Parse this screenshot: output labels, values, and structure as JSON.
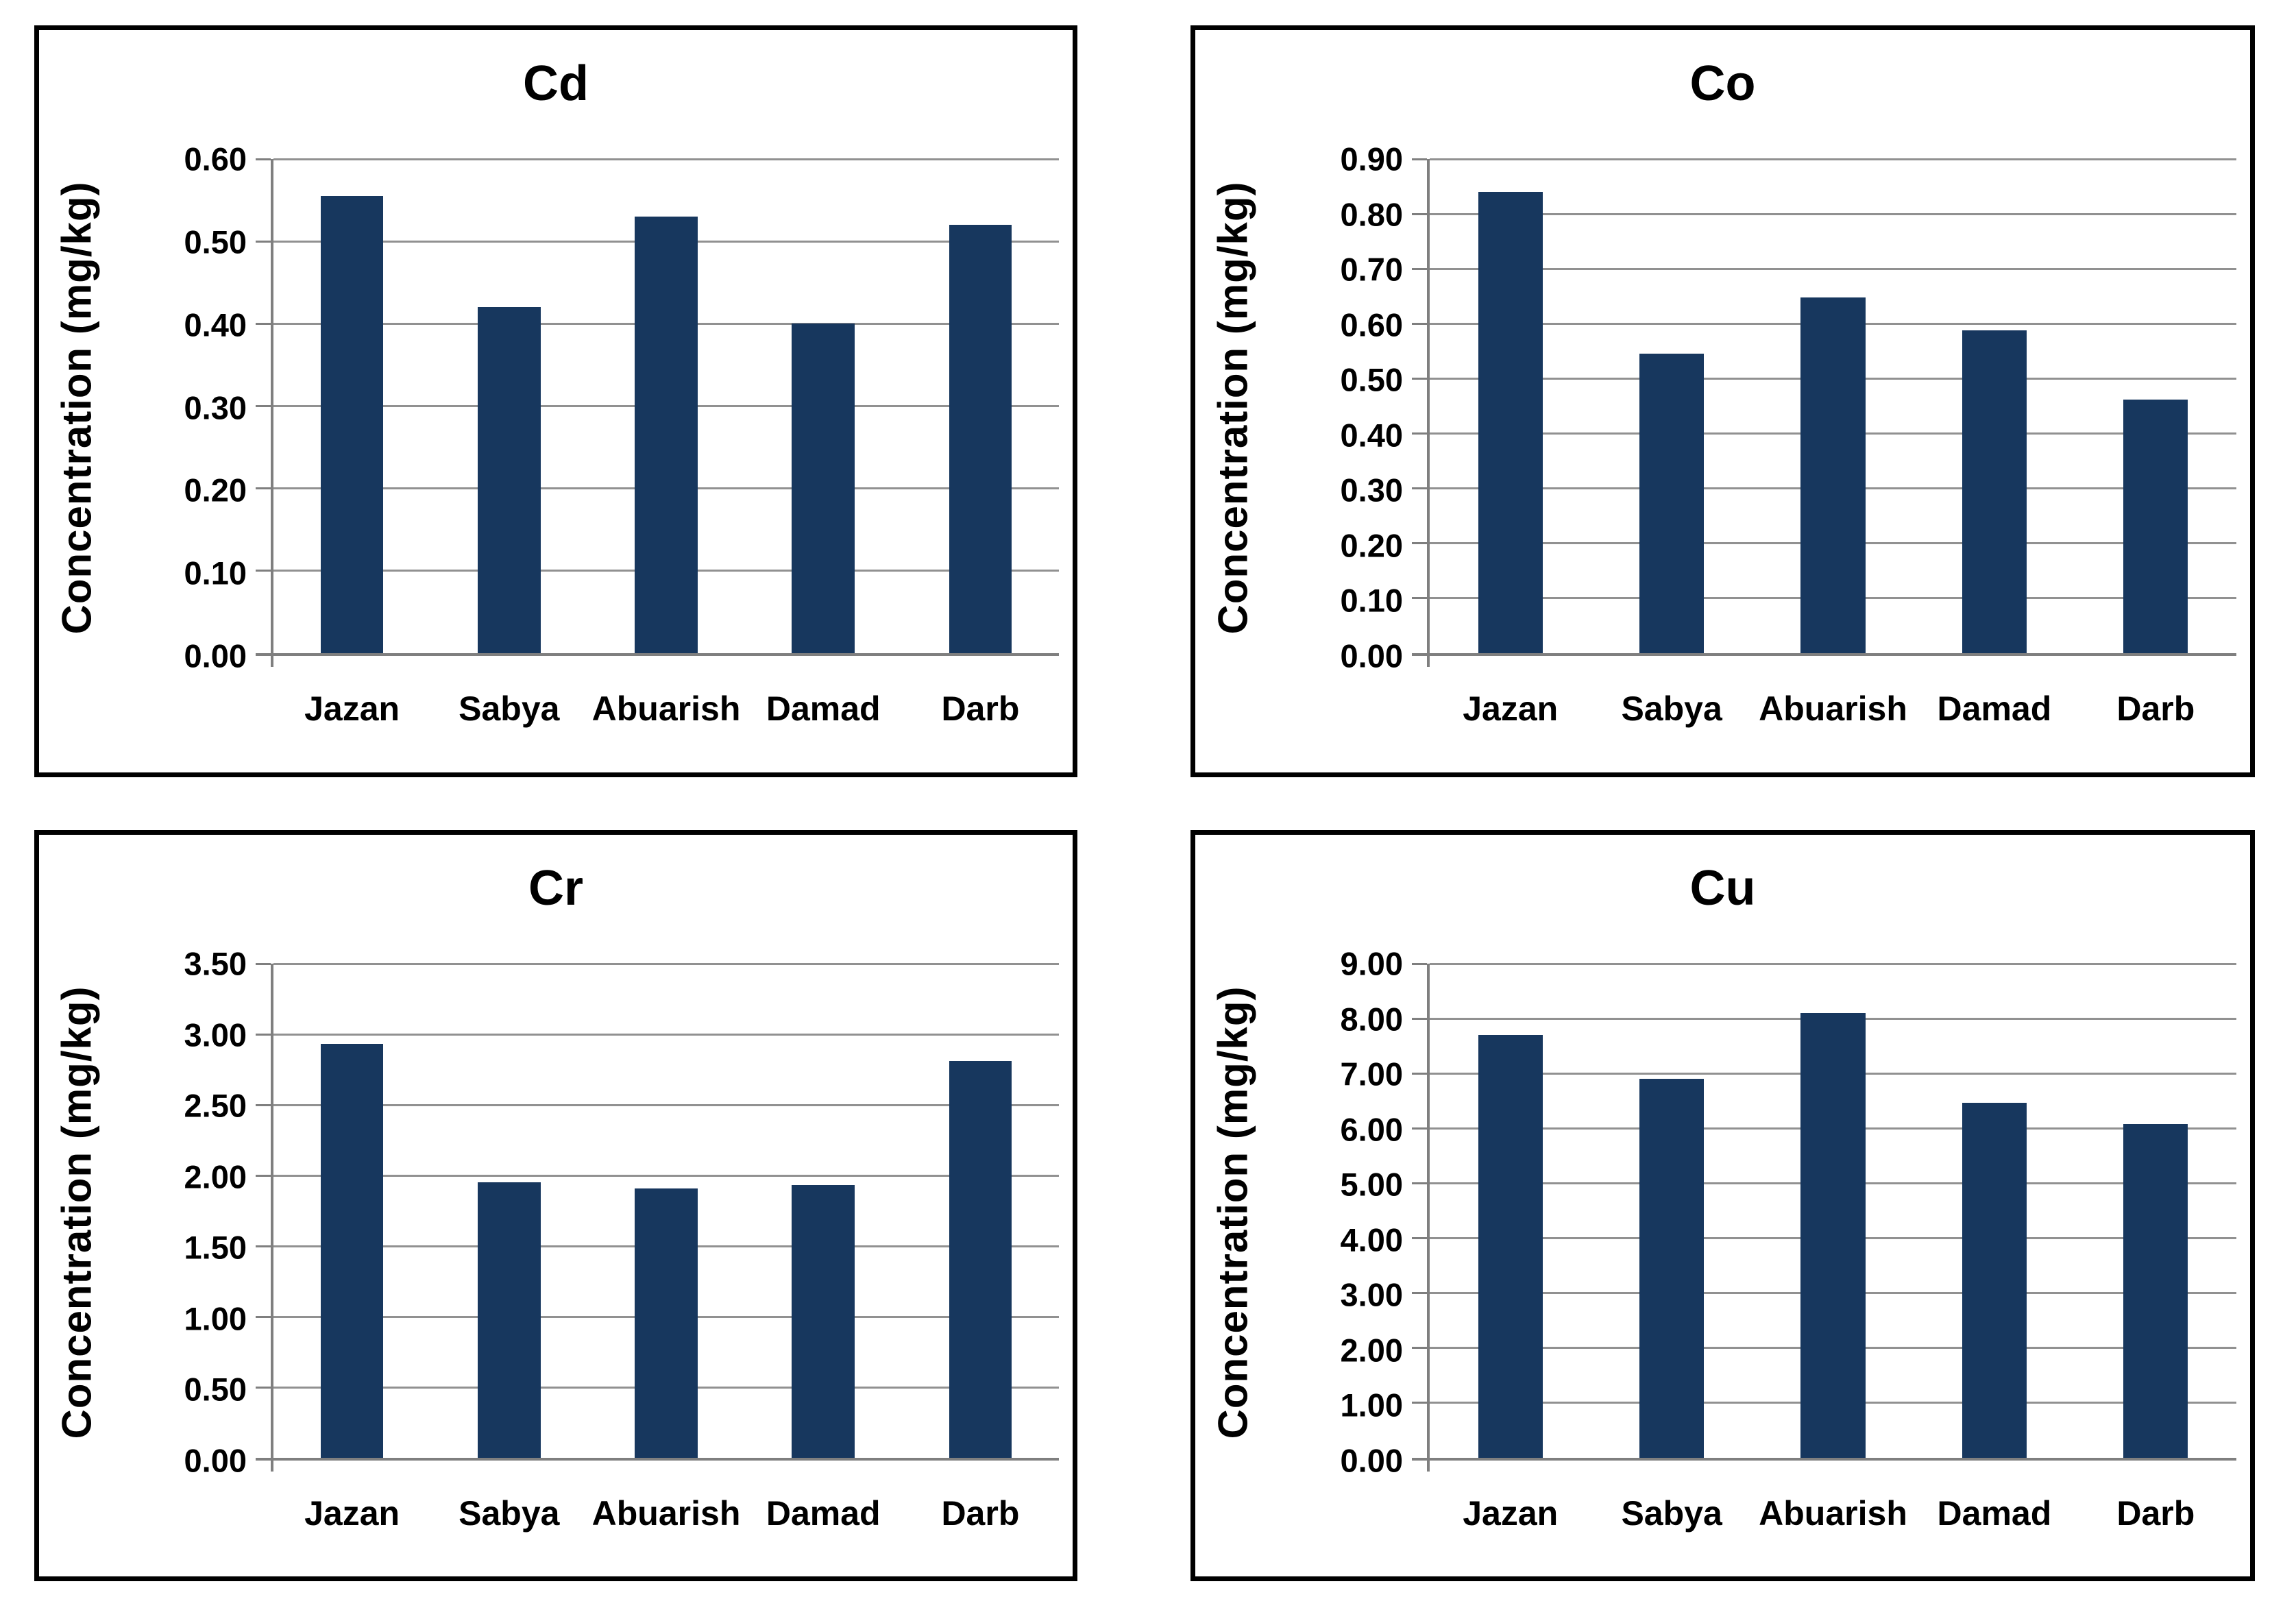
{
  "page": {
    "background": "#ffffff"
  },
  "styles": {
    "bar_color": "#17375E",
    "gridline_color": "#919191",
    "axis_color": "#7f7f7f",
    "panel_border_color": "#000000",
    "text_color": "#000000"
  },
  "chart_data": [
    {
      "type": "bar",
      "title": "Cd",
      "ylabel": "Concentration (mg/kg)",
      "xlabel": "",
      "categories": [
        "Jazan",
        "Sabya",
        "Abuarish",
        "Damad",
        "Darb"
      ],
      "values": [
        0.555,
        0.42,
        0.53,
        0.4,
        0.52
      ],
      "ylim": [
        0,
        0.6
      ],
      "ytick_step": 0.1,
      "ytick_decimals": 2,
      "grid": true,
      "legend": "none",
      "bar_color": "#17375E"
    },
    {
      "type": "bar",
      "title": "Co",
      "ylabel": "Concentration (mg/kg)",
      "xlabel": "",
      "categories": [
        "Jazan",
        "Sabya",
        "Abuarish",
        "Damad",
        "Darb"
      ],
      "values": [
        0.84,
        0.545,
        0.648,
        0.588,
        0.462
      ],
      "ylim": [
        0,
        0.9
      ],
      "ytick_step": 0.1,
      "ytick_decimals": 2,
      "grid": true,
      "legend": "none",
      "bar_color": "#17375E"
    },
    {
      "type": "bar",
      "title": "Cr",
      "ylabel": "Concentration (mg/kg)",
      "xlabel": "",
      "categories": [
        "Jazan",
        "Sabya",
        "Abuarish",
        "Damad",
        "Darb"
      ],
      "values": [
        2.93,
        1.95,
        1.91,
        1.93,
        2.81
      ],
      "ylim": [
        0,
        3.5
      ],
      "ytick_step": 0.5,
      "ytick_decimals": 2,
      "grid": true,
      "legend": "none",
      "bar_color": "#17375E"
    },
    {
      "type": "bar",
      "title": "Cu",
      "ylabel": "Concentration (mg/kg)",
      "xlabel": "",
      "categories": [
        "Jazan",
        "Sabya",
        "Abuarish",
        "Damad",
        "Darb"
      ],
      "values": [
        7.7,
        6.9,
        8.1,
        6.47,
        6.08
      ],
      "ylim": [
        0,
        9.0
      ],
      "ytick_step": 1.0,
      "ytick_decimals": 2,
      "grid": true,
      "legend": "none",
      "bar_color": "#17375E"
    }
  ]
}
